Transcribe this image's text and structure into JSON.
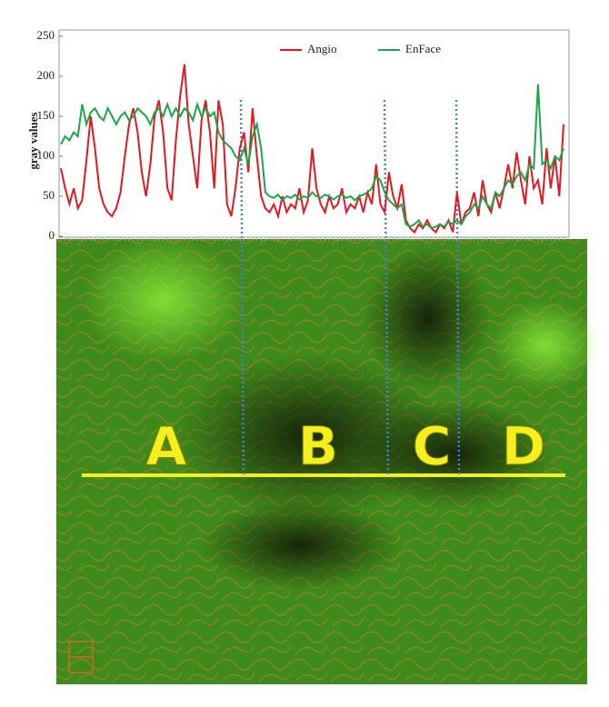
{
  "chart_data": {
    "type": "line",
    "ylabel": "gray values",
    "ylim": [
      0,
      250
    ],
    "yticks": [
      0,
      50,
      100,
      150,
      200,
      250
    ],
    "legend": "top",
    "series": [
      {
        "name": "Angio",
        "color": "#e0191f",
        "values": [
          85,
          60,
          40,
          60,
          35,
          45,
          95,
          150,
          110,
          60,
          40,
          30,
          25,
          35,
          55,
          100,
          140,
          160,
          130,
          80,
          50,
          90,
          150,
          170,
          130,
          60,
          45,
          120,
          175,
          215,
          140,
          100,
          60,
          145,
          170,
          130,
          60,
          170,
          140,
          40,
          25,
          60,
          110,
          130,
          80,
          160,
          100,
          50,
          35,
          30,
          40,
          25,
          50,
          30,
          40,
          35,
          60,
          30,
          45,
          110,
          60,
          40,
          30,
          50,
          35,
          40,
          60,
          30,
          40,
          35,
          50,
          30,
          55,
          40,
          90,
          40,
          30,
          80,
          50,
          35,
          65,
          20,
          10,
          5,
          15,
          10,
          20,
          10,
          5,
          15,
          10,
          20,
          5,
          55,
          15,
          30,
          35,
          55,
          25,
          70,
          40,
          30,
          55,
          35,
          60,
          90,
          60,
          105,
          70,
          40,
          100,
          60,
          70,
          40,
          110,
          60,
          100,
          50,
          140
        ]
      },
      {
        "name": "EnFace",
        "color": "#1aa64a",
        "values": [
          115,
          125,
          120,
          130,
          125,
          165,
          140,
          155,
          160,
          150,
          145,
          160,
          150,
          140,
          150,
          155,
          145,
          150,
          160,
          155,
          150,
          140,
          155,
          160,
          150,
          165,
          150,
          160,
          150,
          160,
          155,
          145,
          165,
          150,
          160,
          150,
          155,
          130,
          120,
          115,
          110,
          100,
          95,
          110,
          90,
          125,
          140,
          110,
          55,
          50,
          48,
          52,
          45,
          50,
          48,
          52,
          46,
          50,
          48,
          55,
          50,
          48,
          52,
          50,
          46,
          50,
          52,
          48,
          50,
          45,
          50,
          52,
          55,
          60,
          75,
          70,
          55,
          45,
          40,
          35,
          40,
          15,
          12,
          15,
          20,
          12,
          15,
          10,
          12,
          15,
          12,
          18,
          15,
          20,
          15,
          25,
          30,
          40,
          35,
          50,
          40,
          35,
          55,
          50,
          60,
          70,
          65,
          75,
          80,
          70,
          90,
          85,
          190,
          90,
          95,
          85,
          100,
          95,
          110
        ]
      }
    ],
    "annotations": [
      "A",
      "B",
      "C",
      "D"
    ]
  }
}
